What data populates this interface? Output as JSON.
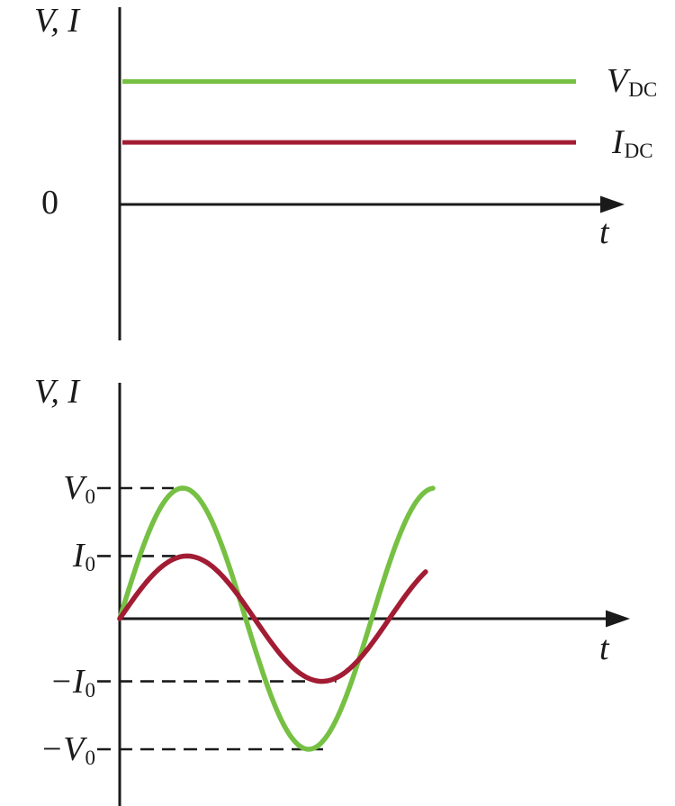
{
  "figure": {
    "background": "#ffffff",
    "axis_color": "#1a1a1a",
    "voltage_color": "#76c043",
    "current_color": "#a21c33"
  },
  "chart_data": [
    {
      "type": "line",
      "xlabel": "t",
      "ylabel": "V, I",
      "origin_label": "0",
      "grid": false,
      "x_range": [
        0,
        1
      ],
      "ylim": [
        -2.3,
        3.4
      ],
      "legend_position": "right-of-lines",
      "series": [
        {
          "name": "V_DC",
          "label": {
            "main": "V",
            "sub": "DC"
          },
          "color": "#76c043",
          "shape": "constant",
          "value": 2.1,
          "x_end": 0.9
        },
        {
          "name": "I_DC",
          "label": {
            "main": "I",
            "sub": "DC"
          },
          "color": "#a21c33",
          "shape": "constant",
          "value": 1.06,
          "x_end": 0.9
        }
      ]
    },
    {
      "type": "line",
      "xlabel": "t",
      "ylabel": "V, I",
      "grid": false,
      "x_range": [
        0,
        1.35
      ],
      "ylim": [
        -1.45,
        1.8
      ],
      "series": [
        {
          "name": "V",
          "label": {
            "main": "V",
            "sub": "0"
          },
          "color": "#76c043",
          "shape": "sine",
          "amplitude": 1.0,
          "period": 1.0,
          "x_end": 1.243
        },
        {
          "name": "I",
          "label": {
            "main": "I",
            "sub": "0"
          },
          "color": "#a21c33",
          "shape": "sine",
          "amplitude": 0.48,
          "period": 1.07,
          "x_end": 1.214
        }
      ],
      "y_ticks": [
        {
          "value": 1.0,
          "label": {
            "main": "V",
            "sub": "0"
          }
        },
        {
          "value": 0.48,
          "label": {
            "main": "I",
            "sub": "0"
          }
        },
        {
          "value": -0.48,
          "label": {
            "main": "−I",
            "sub": "0"
          }
        },
        {
          "value": -1.0,
          "label": {
            "main": "−V",
            "sub": "0"
          }
        }
      ]
    }
  ]
}
